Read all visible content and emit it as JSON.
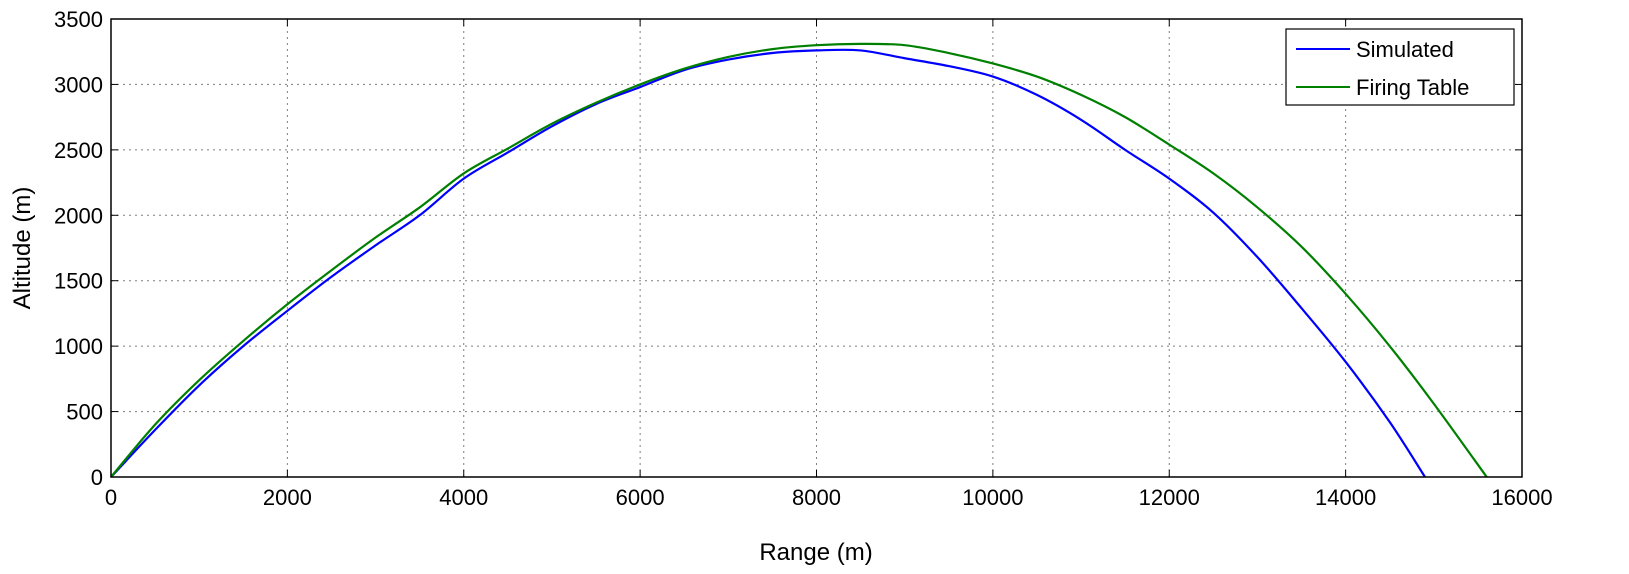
{
  "chart_data": {
    "type": "line",
    "title": "",
    "xlabel": "Range (m)",
    "ylabel": "Altitude (m)",
    "xlim": [
      0,
      16000
    ],
    "ylim": [
      0,
      3500
    ],
    "x_ticks": [
      0,
      2000,
      4000,
      6000,
      8000,
      10000,
      12000,
      14000,
      16000
    ],
    "y_ticks": [
      0,
      500,
      1000,
      1500,
      2000,
      2500,
      3000,
      3500
    ],
    "x_tick_labels": [
      "0",
      "2000",
      "4000",
      "6000",
      "8000",
      "10000",
      "12000",
      "14000",
      "16000"
    ],
    "y_tick_labels": [
      "0",
      "500",
      "1000",
      "1500",
      "2000",
      "2500",
      "3000",
      "3500"
    ],
    "grid": true,
    "legend_position": "top-right",
    "series": [
      {
        "name": "Simulated",
        "color": "#0000ff",
        "x": [
          0,
          500,
          1000,
          1500,
          2000,
          2500,
          3000,
          3500,
          4000,
          4500,
          5000,
          5500,
          6000,
          6500,
          7000,
          7500,
          8000,
          8500,
          9000,
          9500,
          10000,
          10500,
          11000,
          11500,
          12000,
          12500,
          13000,
          13500,
          14000,
          14500,
          14900
        ],
        "y": [
          0,
          360,
          700,
          1000,
          1270,
          1530,
          1770,
          2000,
          2280,
          2480,
          2680,
          2850,
          2980,
          3110,
          3190,
          3240,
          3260,
          3260,
          3200,
          3140,
          3060,
          2920,
          2730,
          2500,
          2280,
          2020,
          1680,
          1290,
          880,
          420,
          0
        ]
      },
      {
        "name": "Firing Table",
        "color": "#008000",
        "x": [
          0,
          500,
          1000,
          1500,
          2000,
          2500,
          3000,
          3500,
          4000,
          4500,
          5000,
          5500,
          6000,
          6500,
          7000,
          7500,
          8000,
          8500,
          9000,
          9500,
          10000,
          10500,
          11000,
          11500,
          12000,
          12500,
          13000,
          13500,
          14000,
          14500,
          15000,
          15600
        ],
        "y": [
          0,
          400,
          740,
          1040,
          1320,
          1580,
          1830,
          2060,
          2320,
          2510,
          2700,
          2860,
          3000,
          3120,
          3210,
          3270,
          3300,
          3310,
          3300,
          3240,
          3160,
          3060,
          2920,
          2750,
          2540,
          2320,
          2060,
          1760,
          1400,
          1000,
          560,
          0
        ]
      }
    ]
  }
}
